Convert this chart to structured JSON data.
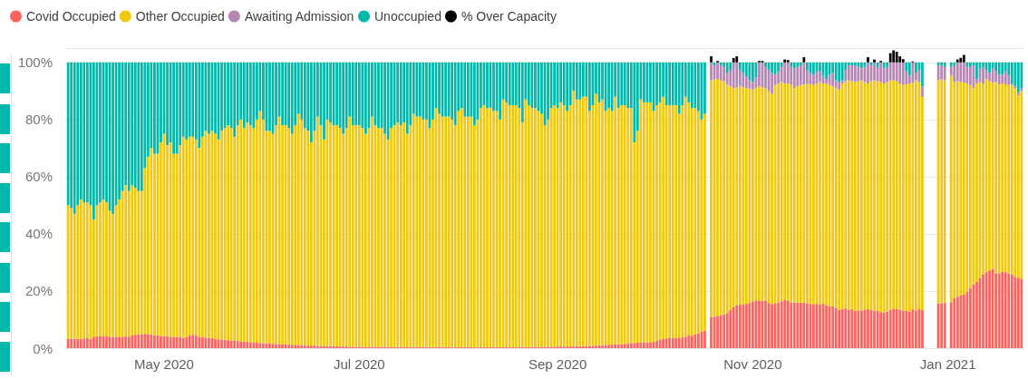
{
  "chart_data": {
    "type": "bar",
    "stacked": true,
    "legend": "top left",
    "grid": "y",
    "xlim": [
      "2020-03-31T12:00",
      "2021-01-24T12:00"
    ],
    "xticks": [
      {
        "value": "2020-05-01",
        "label": "May 2020"
      },
      {
        "value": "2020-07-01",
        "label": "Jul 2020"
      },
      {
        "value": "2020-09-01",
        "label": "Sep 2020"
      },
      {
        "value": "2020-11-01",
        "label": "Nov 2020"
      },
      {
        "value": "2021-01-01",
        "label": "Jan 2021"
      }
    ],
    "ylim": [
      0,
      105
    ],
    "yticks": [
      {
        "value": 0,
        "label": "0%"
      },
      {
        "value": 20,
        "label": "20%"
      },
      {
        "value": 40,
        "label": "40%"
      },
      {
        "value": 60,
        "label": "60%"
      },
      {
        "value": 80,
        "label": "80%"
      },
      {
        "value": 100,
        "label": "100%"
      }
    ],
    "x": [
      "2020-04-01",
      "2020-04-02",
      "2020-04-03",
      "2020-04-04",
      "2020-04-05",
      "2020-04-06",
      "2020-04-07",
      "2020-04-08",
      "2020-04-09",
      "2020-04-10",
      "2020-04-11",
      "2020-04-12",
      "2020-04-13",
      "2020-04-14",
      "2020-04-15",
      "2020-04-16",
      "2020-04-17",
      "2020-04-18",
      "2020-04-19",
      "2020-04-20",
      "2020-04-21",
      "2020-04-22",
      "2020-04-23",
      "2020-04-24",
      "2020-04-25",
      "2020-04-26",
      "2020-04-27",
      "2020-04-28",
      "2020-04-29",
      "2020-04-30",
      "2020-05-01",
      "2020-05-02",
      "2020-05-03",
      "2020-05-04",
      "2020-05-05",
      "2020-05-06",
      "2020-05-07",
      "2020-05-08",
      "2020-05-09",
      "2020-05-10",
      "2020-05-11",
      "2020-05-12",
      "2020-05-13",
      "2020-05-14",
      "2020-05-15",
      "2020-05-16",
      "2020-05-17",
      "2020-05-18",
      "2020-05-19",
      "2020-05-20",
      "2020-05-21",
      "2020-05-22",
      "2020-05-23",
      "2020-05-24",
      "2020-05-25",
      "2020-05-26",
      "2020-05-27",
      "2020-05-28",
      "2020-05-29",
      "2020-05-30",
      "2020-05-31",
      "2020-06-01",
      "2020-06-02",
      "2020-06-03",
      "2020-06-04",
      "2020-06-05",
      "2020-06-06",
      "2020-06-07",
      "2020-06-08",
      "2020-06-09",
      "2020-06-10",
      "2020-06-11",
      "2020-06-12",
      "2020-06-13",
      "2020-06-14",
      "2020-06-15",
      "2020-06-16",
      "2020-06-17",
      "2020-06-18",
      "2020-06-19",
      "2020-06-20",
      "2020-06-21",
      "2020-06-22",
      "2020-06-23",
      "2020-06-24",
      "2020-06-25",
      "2020-06-26",
      "2020-06-27",
      "2020-06-28",
      "2020-06-29",
      "2020-06-30",
      "2020-07-01",
      "2020-07-02",
      "2020-07-03",
      "2020-07-04",
      "2020-07-05",
      "2020-07-06",
      "2020-07-07",
      "2020-07-08",
      "2020-07-09",
      "2020-07-10",
      "2020-07-11",
      "2020-07-12",
      "2020-07-13",
      "2020-07-14",
      "2020-07-15",
      "2020-07-16",
      "2020-07-17",
      "2020-07-18",
      "2020-07-19",
      "2020-07-20",
      "2020-07-21",
      "2020-07-22",
      "2020-07-23",
      "2020-07-24",
      "2020-07-25",
      "2020-07-26",
      "2020-07-27",
      "2020-07-28",
      "2020-07-29",
      "2020-07-30",
      "2020-07-31",
      "2020-08-01",
      "2020-08-02",
      "2020-08-03",
      "2020-08-04",
      "2020-08-05",
      "2020-08-06",
      "2020-08-07",
      "2020-08-08",
      "2020-08-09",
      "2020-08-10",
      "2020-08-11",
      "2020-08-12",
      "2020-08-13",
      "2020-08-14",
      "2020-08-15",
      "2020-08-16",
      "2020-08-17",
      "2020-08-18",
      "2020-08-19",
      "2020-08-20",
      "2020-08-21",
      "2020-08-22",
      "2020-08-23",
      "2020-08-24",
      "2020-08-25",
      "2020-08-26",
      "2020-08-27",
      "2020-08-28",
      "2020-08-29",
      "2020-08-30",
      "2020-08-31",
      "2020-09-01",
      "2020-09-02",
      "2020-09-03",
      "2020-09-04",
      "2020-09-05",
      "2020-09-06",
      "2020-09-07",
      "2020-09-08",
      "2020-09-09",
      "2020-09-10",
      "2020-09-11",
      "2020-09-12",
      "2020-09-13",
      "2020-09-14",
      "2020-09-15",
      "2020-09-16",
      "2020-09-17",
      "2020-09-18",
      "2020-09-19",
      "2020-09-20",
      "2020-09-21",
      "2020-09-22",
      "2020-09-23",
      "2020-09-24",
      "2020-09-25",
      "2020-09-26",
      "2020-09-27",
      "2020-09-28",
      "2020-09-29",
      "2020-09-30",
      "2020-10-01",
      "2020-10-02",
      "2020-10-03",
      "2020-10-04",
      "2020-10-05",
      "2020-10-06",
      "2020-10-07",
      "2020-10-08",
      "2020-10-09",
      "2020-10-10",
      "2020-10-11",
      "2020-10-12",
      "2020-10-13",
      "2020-10-14",
      "2020-10-15",
      "2020-10-16",
      "2020-10-17",
      "2020-10-19",
      "2020-10-20",
      "2020-10-21",
      "2020-10-22",
      "2020-10-23",
      "2020-10-24",
      "2020-10-25",
      "2020-10-26",
      "2020-10-27",
      "2020-10-28",
      "2020-10-29",
      "2020-10-30",
      "2020-10-31",
      "2020-11-01",
      "2020-11-02",
      "2020-11-03",
      "2020-11-04",
      "2020-11-05",
      "2020-11-06",
      "2020-11-07",
      "2020-11-08",
      "2020-11-09",
      "2020-11-10",
      "2020-11-11",
      "2020-11-12",
      "2020-11-13",
      "2020-11-14",
      "2020-11-15",
      "2020-11-16",
      "2020-11-17",
      "2020-11-18",
      "2020-11-19",
      "2020-11-20",
      "2020-11-21",
      "2020-11-22",
      "2020-11-23",
      "2020-11-24",
      "2020-11-25",
      "2020-11-26",
      "2020-11-27",
      "2020-11-28",
      "2020-11-29",
      "2020-11-30",
      "2020-12-01",
      "2020-12-02",
      "2020-12-03",
      "2020-12-04",
      "2020-12-05",
      "2020-12-06",
      "2020-12-07",
      "2020-12-08",
      "2020-12-09",
      "2020-12-10",
      "2020-12-11",
      "2020-12-12",
      "2020-12-13",
      "2020-12-14",
      "2020-12-15",
      "2020-12-16",
      "2020-12-17",
      "2020-12-18",
      "2020-12-19",
      "2020-12-20",
      "2020-12-21",
      "2020-12-22",
      "2020-12-23",
      "2020-12-24",
      "2020-12-29",
      "2020-12-30",
      "2020-12-31",
      "2021-01-02",
      "2021-01-03",
      "2021-01-04",
      "2021-01-05",
      "2021-01-06",
      "2021-01-07",
      "2021-01-08",
      "2021-01-09",
      "2021-01-10",
      "2021-01-11",
      "2021-01-12",
      "2021-01-13",
      "2021-01-14",
      "2021-01-15",
      "2021-01-16",
      "2021-01-17",
      "2021-01-18",
      "2021-01-19",
      "2021-01-20",
      "2021-01-21",
      "2021-01-22",
      "2021-01-23",
      "2021-01-24"
    ],
    "series": [
      {
        "name": "Covid Occupied",
        "color": "#fd625e",
        "values": [
          3.2,
          3.2,
          3.3,
          3.3,
          3.3,
          3.4,
          3.5,
          3.3,
          3.8,
          4.2,
          4.3,
          4.2,
          4.1,
          4.0,
          3.9,
          4.0,
          4.0,
          4.0,
          4.1,
          4.0,
          4.6,
          4.7,
          4.8,
          4.9,
          5.0,
          4.9,
          4.8,
          4.5,
          4.4,
          4.3,
          4.2,
          4.2,
          4.0,
          3.9,
          4.0,
          3.8,
          3.6,
          3.9,
          4.6,
          4.7,
          4.4,
          4.0,
          3.9,
          3.7,
          3.6,
          3.5,
          3.3,
          3.1,
          3.0,
          2.9,
          2.8,
          2.7,
          2.6,
          2.5,
          2.4,
          2.3,
          2.2,
          2.1,
          2.0,
          1.9,
          1.8,
          1.7,
          1.7,
          1.6,
          1.5,
          1.4,
          1.4,
          1.3,
          1.3,
          1.2,
          1.2,
          1.1,
          1.1,
          1.0,
          1.0,
          0.9,
          0.9,
          0.9,
          0.8,
          0.8,
          0.8,
          0.7,
          0.7,
          0.7,
          0.7,
          0.6,
          0.6,
          0.6,
          0.5,
          0.5,
          0.5,
          0.5,
          0.5,
          0.5,
          0.5,
          0.5,
          0.5,
          0.5,
          0.5,
          0.5,
          0.4,
          0.4,
          0.4,
          0.4,
          0.4,
          0.4,
          0.4,
          0.4,
          0.4,
          0.4,
          0.4,
          0.4,
          0.4,
          0.4,
          0.4,
          0.4,
          0.4,
          0.4,
          0.4,
          0.4,
          0.3,
          0.3,
          0.3,
          0.3,
          0.3,
          0.3,
          0.3,
          0.3,
          0.3,
          0.3,
          0.3,
          0.3,
          0.3,
          0.3,
          0.3,
          0.3,
          0.3,
          0.3,
          0.3,
          0.3,
          0.3,
          0.3,
          0.3,
          0.3,
          0.4,
          0.5,
          0.5,
          0.5,
          0.5,
          0.5,
          0.5,
          0.5,
          0.5,
          0.6,
          0.6,
          0.6,
          0.6,
          0.6,
          0.7,
          0.7,
          0.7,
          0.7,
          0.8,
          0.8,
          0.8,
          0.9,
          1.0,
          1.0,
          1.1,
          1.2,
          1.2,
          1.3,
          1.3,
          1.4,
          1.5,
          1.6,
          1.7,
          1.8,
          1.9,
          2.0,
          2.0,
          2.0,
          2.1,
          2.2,
          2.5,
          3.0,
          3.2,
          3.4,
          3.5,
          3.5,
          3.6,
          3.7,
          3.8,
          4.0,
          4.6,
          4.4,
          4.8,
          5.2,
          5.8,
          6.2,
          10.9,
          11.0,
          11.3,
          11.5,
          11.8,
          12.3,
          13.3,
          14.3,
          15.1,
          15.2,
          15.2,
          15.5,
          15.8,
          16.3,
          16.7,
          16.7,
          16.6,
          16.5,
          15.8,
          15.4,
          15.7,
          16.0,
          16.4,
          16.9,
          16.6,
          16.0,
          15.9,
          16.0,
          16.0,
          15.9,
          15.7,
          15.5,
          15.3,
          15.5,
          15.2,
          15.6,
          15.0,
          14.6,
          14.6,
          14.1,
          13.4,
          13.7,
          13.9,
          13.5,
          13.6,
          13.1,
          13.2,
          13.0,
          13.5,
          13.7,
          13.3,
          13.0,
          13.1,
          12.6,
          12.4,
          12.8,
          13.3,
          13.7,
          13.7,
          13.5,
          13.2,
          13.0,
          12.8,
          13.6,
          13.2,
          13.6,
          13.3,
          15.6,
          15.7,
          15.8,
          16.1,
          17.5,
          18.0,
          18.4,
          18.8,
          19.8,
          21.0,
          22.2,
          23.2,
          24.6,
          25.7,
          26.6,
          27.2,
          27.7,
          26.2,
          26.2,
          26.7,
          26.7,
          26.2,
          25.7,
          25.0,
          24.6,
          24.1
        ]
      },
      {
        "name": "Other Occupied",
        "color": "#f2c80f",
        "values": [
          46.8,
          45.8,
          43.7,
          46.7,
          48.7,
          47.6,
          47.5,
          46.7,
          41.2,
          45.8,
          46.7,
          47.8,
          46.9,
          44,
          43.1,
          46,
          48,
          51,
          52.9,
          51,
          52.4,
          51.3,
          50.2,
          50.1,
          58,
          62.1,
          65.2,
          63.5,
          63.6,
          67.7,
          70.8,
          66.8,
          68,
          64.1,
          64,
          67.2,
          70.4,
          69.1,
          69.4,
          69.3,
          68.6,
          66,
          70.1,
          72.3,
          71.4,
          72.5,
          71.7,
          69.9,
          73,
          74.1,
          75.2,
          74.3,
          71.4,
          75.5,
          77.6,
          74.7,
          76.8,
          75.9,
          75,
          78.1,
          81.2,
          78.3,
          74.3,
          74.4,
          73.5,
          76.6,
          79.6,
          76.7,
          76.7,
          75.8,
          73.8,
          76.9,
          80.9,
          79,
          76,
          75.1,
          71.1,
          75.1,
          80.2,
          77.2,
          72.2,
          79.3,
          78.3,
          77.3,
          77.3,
          76.4,
          74.4,
          76.4,
          80.5,
          77.5,
          77.5,
          77.5,
          76.5,
          74.5,
          76.5,
          80.5,
          77.5,
          76.5,
          76.5,
          74.5,
          72.6,
          76.6,
          77.6,
          78.6,
          77.6,
          78.6,
          74.6,
          77.6,
          81.6,
          80.6,
          80.6,
          79.6,
          79.6,
          76.6,
          79.6,
          83.6,
          81.6,
          80.6,
          80.6,
          80.6,
          79.7,
          77.7,
          82.7,
          83.7,
          80.7,
          80.7,
          80.7,
          77.7,
          79.7,
          83.7,
          84.7,
          83.7,
          83.7,
          82.7,
          82.7,
          79.7,
          86.7,
          85.7,
          84.7,
          84.7,
          84.7,
          83.7,
          78.7,
          86.7,
          84.6,
          83.5,
          83.5,
          82.5,
          81.5,
          77.5,
          79.5,
          83.5,
          84.5,
          83.4,
          85.4,
          84.4,
          82.4,
          84.4,
          89.3,
          86.3,
          86.3,
          87.3,
          87.2,
          82.2,
          84.2,
          88.1,
          85,
          86,
          81.9,
          82.8,
          81.8,
          86.7,
          82.7,
          83.6,
          83.5,
          82.4,
          82.3,
          70.2,
          74.1,
          85,
          84,
          84,
          83.9,
          80.8,
          82.5,
          83,
          84.8,
          81.6,
          81.5,
          81.5,
          81.4,
          78.3,
          81.2,
          84,
          81.4,
          79.6,
          79.2,
          77.8,
          74.2,
          75.8,
          82.8,
          83.0,
          82.9,
          82.2,
          81.6,
          80.0,
          78.3,
          76.7,
          76.1,
          76.4,
          76.0,
          75.5,
          75.0,
          74.2,
          74.3,
          74.9,
          74.6,
          74.5,
          74.2,
          73.5,
          76.4,
          76.6,
          76.7,
          75.7,
          76.0,
          76.1,
          75.1,
          75.6,
          76.1,
          76.4,
          76.9,
          76.8,
          76.8,
          77.1,
          77.9,
          77.0,
          77.6,
          77.5,
          77.0,
          76.9,
          77.1,
          78.9,
          79.5,
          80.2,
          79.8,
          80.0,
          80.2,
          80.7,
          79.6,
          78.9,
          80.1,
          80.7,
          80.3,
          80.5,
          80.2,
          80.3,
          80.4,
          80.0,
          79.7,
          79.1,
          78.9,
          79.3,
          79.8,
          79.3,
          80.5,
          79.5,
          74.6,
          78.1,
          78.5,
          77.9,
          79.2,
          75.6,
          75.4,
          74.7,
          74.1,
          72.8,
          71.1,
          68.8,
          69.4,
          68.5,
          66.9,
          67.6,
          66.2,
          65.2,
          66.9,
          66.1,
          65.9,
          65.6,
          65.9,
          66.4,
          66.0,
          63.8,
          65.9
        ]
      },
      {
        "name": "Awaiting Admission",
        "color": "#b687b4",
        "values": [
          null,
          null,
          null,
          null,
          null,
          null,
          null,
          null,
          null,
          null,
          null,
          null,
          null,
          null,
          null,
          null,
          null,
          null,
          null,
          null,
          null,
          null,
          null,
          null,
          null,
          null,
          null,
          null,
          null,
          null,
          null,
          null,
          null,
          null,
          null,
          null,
          null,
          null,
          null,
          null,
          null,
          null,
          null,
          null,
          null,
          null,
          null,
          null,
          null,
          null,
          null,
          null,
          null,
          null,
          null,
          null,
          null,
          null,
          null,
          null,
          null,
          null,
          null,
          null,
          null,
          null,
          null,
          null,
          null,
          null,
          null,
          null,
          null,
          null,
          null,
          null,
          null,
          null,
          null,
          null,
          null,
          null,
          null,
          null,
          null,
          null,
          null,
          null,
          null,
          null,
          null,
          null,
          null,
          null,
          null,
          null,
          null,
          null,
          null,
          null,
          null,
          null,
          null,
          null,
          null,
          null,
          null,
          null,
          null,
          null,
          null,
          null,
          null,
          null,
          null,
          null,
          null,
          null,
          null,
          null,
          null,
          null,
          null,
          null,
          null,
          null,
          null,
          null,
          null,
          null,
          null,
          null,
          null,
          null,
          null,
          null,
          null,
          null,
          null,
          null,
          null,
          null,
          null,
          null,
          null,
          null,
          null,
          null,
          null,
          null,
          null,
          null,
          null,
          null,
          null,
          null,
          null,
          null,
          null,
          null,
          null,
          null,
          null,
          null,
          null,
          null,
          null,
          null,
          null,
          null,
          null,
          null,
          null,
          null,
          null,
          null,
          null,
          null,
          null,
          null,
          null,
          null,
          null,
          null,
          null,
          null,
          null,
          null,
          null,
          null,
          null,
          null,
          null,
          null,
          null,
          null,
          null,
          null,
          null,
          null,
          6.3,
          5.0,
          5.8,
          5.3,
          5.0,
          4.0,
          5.8,
          9.0,
          8.8,
          5.8,
          5.1,
          4.1,
          2.9,
          2.6,
          3.7,
          8.4,
          8.8,
          7.4,
          7.4,
          7.4,
          3.6,
          4.2,
          5.3,
          7.4,
          7.4,
          6.3,
          6.9,
          6.8,
          6.9,
          7.7,
          4.8,
          4.0,
          3.6,
          4.2,
          3.7,
          2.7,
          1.6,
          3.6,
          4.7,
          2.7,
          2.6,
          1.1,
          4.0,
          5.3,
          5.6,
          5.9,
          5.0,
          4.2,
          5.3,
          7.4,
          5.6,
          6.3,
          5.0,
          6.9,
          5.3,
          5.3,
          6.3,
          6.3,
          6.6,
          7.4,
          7.9,
          4.5,
          2.7,
          7.1,
          2.6,
          4.3,
          3.7,
          5.3,
          4.8,
          4.7,
          3.1,
          5.9,
          6.6,
          6.9,
          7.1,
          5.8,
          6.3,
          8.0,
          1.6,
          4.8,
          5.8,
          3.2,
          2.9,
          5.0,
          3.7,
          3.4,
          3.1,
          4.5,
          3.2,
          0.5,
          0.6,
          1.1,
          1.0
        ]
      },
      {
        "name": "Unoccupied",
        "color": "#01b8aa",
        "values": [
          50,
          51,
          53,
          50,
          48,
          49,
          49,
          50,
          55,
          50,
          49,
          48,
          49,
          52,
          53,
          50,
          48,
          45,
          43,
          45,
          43,
          44,
          45,
          45,
          37,
          33,
          30,
          32,
          32,
          28,
          25,
          29,
          28,
          32,
          32,
          29,
          26,
          27,
          26,
          26,
          27,
          30,
          26,
          24,
          25,
          24,
          25,
          27,
          24,
          23,
          22,
          23,
          26,
          22,
          20,
          23,
          21,
          22,
          23,
          20,
          17,
          20,
          24,
          24,
          25,
          22,
          19,
          22,
          22,
          23,
          25,
          22,
          18,
          20,
          23,
          24,
          28,
          24,
          19,
          22,
          27,
          20,
          21,
          22,
          22,
          23,
          25,
          23,
          19,
          22,
          22,
          22,
          23,
          25,
          23,
          19,
          22,
          23,
          23,
          25,
          27,
          23,
          22,
          21,
          22,
          21,
          25,
          22,
          18,
          19,
          19,
          20,
          20,
          23,
          20,
          16,
          18,
          19,
          19,
          19,
          20,
          22,
          17,
          16,
          19,
          19,
          19,
          22,
          20,
          16,
          15,
          16,
          16,
          17,
          17,
          20,
          13,
          14,
          15,
          15,
          15,
          16,
          21,
          13,
          15,
          16,
          16,
          17,
          18,
          22,
          20,
          16,
          15,
          16,
          14,
          15,
          17,
          15,
          10,
          13,
          13,
          12,
          12,
          17,
          15,
          11,
          14,
          13,
          17,
          16,
          17,
          12,
          16,
          15,
          15,
          16,
          16,
          28,
          24,
          13,
          14,
          14,
          14,
          17,
          15,
          14,
          12,
          15,
          15,
          15,
          15,
          18,
          15,
          12,
          14,
          16,
          16,
          17,
          20,
          18,
          null,
          1.0,
          null,
          1.0,
          1.6,
          3.7,
          2.6,
          null,
          null,
          2.6,
          3.7,
          4.9,
          6.3,
          6.9,
          5.3,
          null,
          null,
          1.6,
          2.6,
          3.7,
          4.3,
          3.2,
          1.6,
          null,
          null,
          1.6,
          2.1,
          1.6,
          1.0,
          null,
          2.6,
          3.7,
          4.3,
          3.2,
          3.2,
          4.7,
          5.8,
          4.3,
          3.7,
          6.3,
          6.9,
          6.3,
          2.6,
          1.0,
          1.0,
          1.0,
          1.6,
          2.1,
          1.6,
          null,
          1.0,
          null,
          1.6,
          null,
          2.1,
          1.6,
          null,
          null,
          null,
          null,
          null,
          3.2,
          4.7,
          null,
          3.7,
          2.6,
          8.4,
          1.0,
          1.0,
          1.6,
          1.6,
          1.0,
          null,
          null,
          null,
          1.6,
          1.6,
          1.0,
          5.8,
          2.1,
          1.6,
          2.6,
          3.7,
          2.1,
          3.2,
          4.3,
          4.3,
          3.2,
          4.7,
          7.4,
          8.4,
          10.5,
          9.0
        ]
      },
      {
        "name": "% Over Capacity",
        "color": "#000000",
        "values": [
          null,
          null,
          null,
          null,
          null,
          null,
          null,
          null,
          null,
          null,
          null,
          null,
          null,
          null,
          null,
          null,
          null,
          null,
          null,
          null,
          null,
          null,
          null,
          null,
          null,
          null,
          null,
          null,
          null,
          null,
          null,
          null,
          null,
          null,
          null,
          null,
          null,
          null,
          null,
          null,
          null,
          null,
          null,
          null,
          null,
          null,
          null,
          null,
          null,
          null,
          null,
          null,
          null,
          null,
          null,
          null,
          null,
          null,
          null,
          null,
          null,
          null,
          null,
          null,
          null,
          null,
          null,
          null,
          null,
          null,
          null,
          null,
          null,
          null,
          null,
          null,
          null,
          null,
          null,
          null,
          null,
          null,
          null,
          null,
          null,
          null,
          null,
          null,
          null,
          null,
          null,
          null,
          null,
          null,
          null,
          null,
          null,
          null,
          null,
          null,
          null,
          null,
          null,
          null,
          null,
          null,
          null,
          null,
          null,
          null,
          null,
          null,
          null,
          null,
          null,
          null,
          null,
          null,
          null,
          null,
          null,
          null,
          null,
          null,
          null,
          null,
          null,
          null,
          null,
          null,
          null,
          null,
          null,
          null,
          null,
          null,
          null,
          null,
          null,
          null,
          null,
          null,
          null,
          null,
          null,
          null,
          null,
          null,
          null,
          null,
          null,
          null,
          null,
          null,
          null,
          null,
          null,
          null,
          null,
          null,
          null,
          null,
          null,
          null,
          null,
          null,
          null,
          null,
          null,
          null,
          null,
          null,
          null,
          null,
          null,
          null,
          null,
          null,
          null,
          null,
          null,
          null,
          null,
          null,
          null,
          null,
          null,
          null,
          null,
          null,
          null,
          null,
          null,
          null,
          null,
          null,
          null,
          null,
          null,
          null,
          2.1,
          null,
          0.5,
          null,
          null,
          null,
          null,
          1.5,
          2.1,
          null,
          null,
          null,
          null,
          null,
          null,
          0.5,
          0.5,
          null,
          null,
          null,
          null,
          null,
          null,
          1.0,
          0.8,
          null,
          null,
          null,
          null,
          1.8,
          null,
          null,
          null,
          null,
          null,
          null,
          null,
          null,
          null,
          null,
          null,
          null,
          null,
          null,
          null,
          null,
          null,
          null,
          null,
          1.8,
          null,
          1.0,
          null,
          0.5,
          null,
          null,
          3.2,
          4.2,
          3.7,
          2.1,
          1.1,
          null,
          null,
          0.3,
          null,
          null,
          null,
          null,
          null,
          null,
          null,
          null,
          1.0,
          1.6,
          2.6,
          null,
          null,
          null,
          null,
          null,
          null,
          null,
          null,
          null,
          null,
          null,
          null,
          null,
          null,
          null,
          null,
          null,
          null
        ]
      }
    ]
  }
}
